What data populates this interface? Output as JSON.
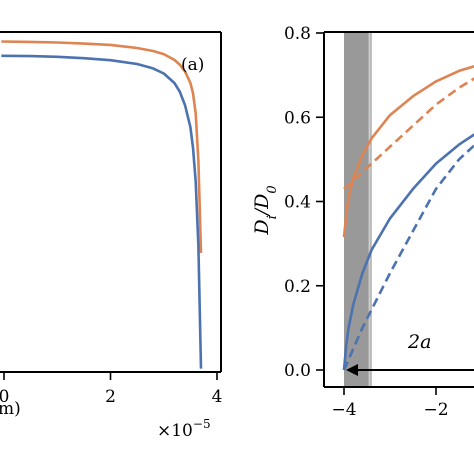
{
  "chart_data": [
    {
      "panel_label": "(a)",
      "type": "line",
      "xlabel_visible": "m)",
      "x_multiplier": "×10",
      "x_multiplier_exponent": "−5",
      "x_ticks": [
        0,
        2,
        4
      ],
      "x_tick_labels": [
        "0",
        "2",
        "4"
      ],
      "xlim": [
        -0.05,
        4.0
      ],
      "ylim": [
        0,
        1
      ],
      "series": [
        {
          "color": "#dd8452",
          "x": [
            -0.05,
            0.5,
            1.0,
            1.5,
            2.0,
            2.5,
            2.8,
            3.0,
            3.2,
            3.3,
            3.4,
            3.5,
            3.55,
            3.6,
            3.65,
            3.7
          ],
          "y": [
            0.972,
            0.971,
            0.969,
            0.966,
            0.962,
            0.953,
            0.944,
            0.935,
            0.918,
            0.904,
            0.884,
            0.85,
            0.82,
            0.76,
            0.62,
            0.35
          ]
        },
        {
          "color": "#4c72b0",
          "x": [
            -0.05,
            0.5,
            1.0,
            1.5,
            2.0,
            2.5,
            2.8,
            3.0,
            3.2,
            3.3,
            3.4,
            3.5,
            3.55,
            3.6,
            3.65,
            3.7
          ],
          "y": [
            0.93,
            0.929,
            0.927,
            0.923,
            0.917,
            0.906,
            0.893,
            0.878,
            0.85,
            0.825,
            0.785,
            0.72,
            0.66,
            0.56,
            0.37,
            0.01
          ]
        }
      ]
    },
    {
      "type": "line",
      "ylabel": "D_i/D_0",
      "ylim": [
        0,
        0.8
      ],
      "y_ticks": [
        0.0,
        0.2,
        0.4,
        0.6,
        0.8
      ],
      "y_tick_labels": [
        "0.0",
        "0.2",
        "0.4",
        "0.6",
        "0.8"
      ],
      "xlim": [
        -4.3,
        -0.6
      ],
      "x_ticks": [
        -4,
        -2
      ],
      "x_tick_labels": [
        "−4",
        "−2"
      ],
      "shaded_band": {
        "x_from": -4.0,
        "x_to": -3.4,
        "color": "#999999"
      },
      "annotation": {
        "text": "2a",
        "x": -2.4,
        "y": 0.065,
        "arrow_to_x": -4.0,
        "arrow_y": 0.0
      },
      "series": [
        {
          "color": "#dd8452",
          "style": "solid",
          "x": [
            -4.0,
            -3.95,
            -3.9,
            -3.8,
            -3.6,
            -3.4,
            -3.0,
            -2.5,
            -2.0,
            -1.5,
            -0.6
          ],
          "y": [
            0.315,
            0.37,
            0.41,
            0.455,
            0.51,
            0.55,
            0.605,
            0.65,
            0.685,
            0.71,
            0.74
          ]
        },
        {
          "color": "#dd8452",
          "style": "dashed",
          "x": [
            -4.0,
            -3.6,
            -3.0,
            -2.5,
            -2.0,
            -1.5,
            -0.6
          ],
          "y": [
            0.43,
            0.47,
            0.53,
            0.58,
            0.63,
            0.67,
            0.73
          ]
        },
        {
          "color": "#4c72b0",
          "style": "solid",
          "x": [
            -4.0,
            -3.95,
            -3.9,
            -3.8,
            -3.6,
            -3.4,
            -3.0,
            -2.5,
            -2.0,
            -1.5,
            -0.6
          ],
          "y": [
            0.0,
            0.06,
            0.1,
            0.155,
            0.23,
            0.285,
            0.36,
            0.43,
            0.49,
            0.535,
            0.6
          ]
        },
        {
          "color": "#4c72b0",
          "style": "dashed",
          "x": [
            -4.0,
            -3.6,
            -3.0,
            -2.5,
            -2.0,
            -1.5,
            -0.6
          ],
          "y": [
            0.0,
            0.1,
            0.23,
            0.33,
            0.43,
            0.5,
            0.59
          ]
        }
      ]
    }
  ]
}
